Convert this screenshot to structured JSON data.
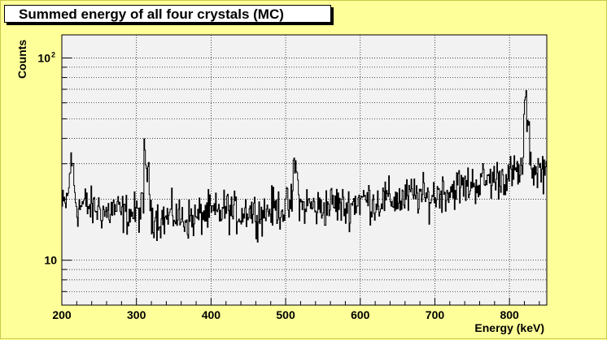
{
  "chart_data": {
    "type": "line",
    "title": "Summed energy of all four crystals (MC)",
    "xlabel": "Energy (keV)",
    "ylabel": "Counts",
    "xlim": [
      200,
      850
    ],
    "ylim": [
      6,
      130
    ],
    "y_scale": "log",
    "grid": true,
    "x_ticks": [
      200,
      300,
      400,
      500,
      600,
      700,
      800
    ],
    "y_ticks": [
      {
        "value": 10,
        "label": "10",
        "exp": ""
      },
      {
        "value": 100,
        "label": "10",
        "exp": "2"
      }
    ],
    "colors": {
      "background": "#ffff99",
      "plot_area": "#f2f2f2",
      "line": "#000000"
    },
    "series": [
      {
        "x": [
          200,
          205,
          210,
          213,
          216,
          220,
          230,
          240,
          250,
          260,
          270,
          280,
          290,
          300,
          310,
          311,
          320,
          330,
          340,
          350,
          360,
          370,
          380,
          390,
          400,
          410,
          420,
          430,
          440,
          450,
          460,
          470,
          480,
          490,
          500,
          510,
          511,
          520,
          530,
          540,
          550,
          560,
          570,
          580,
          590,
          600,
          610,
          620,
          630,
          640,
          650,
          660,
          670,
          680,
          690,
          700,
          710,
          720,
          730,
          740,
          750,
          760,
          770,
          780,
          790,
          800,
          810,
          819,
          820,
          830,
          840,
          850
        ],
        "values": [
          18,
          19,
          22,
          29,
          25,
          18,
          19,
          18,
          18,
          17,
          18,
          17,
          17,
          17,
          18,
          35,
          17,
          16,
          16,
          17,
          16,
          16,
          16,
          17,
          17,
          17,
          18,
          17,
          17,
          18,
          17,
          17,
          18,
          18,
          18,
          19,
          32,
          18,
          19,
          18,
          18,
          19,
          19,
          18,
          19,
          20,
          20,
          19,
          20,
          20,
          20,
          20,
          21,
          21,
          20,
          21,
          22,
          22,
          23,
          23,
          24,
          24,
          25,
          25,
          26,
          26,
          27,
          28,
          62,
          28,
          28,
          28
        ]
      }
    ]
  }
}
